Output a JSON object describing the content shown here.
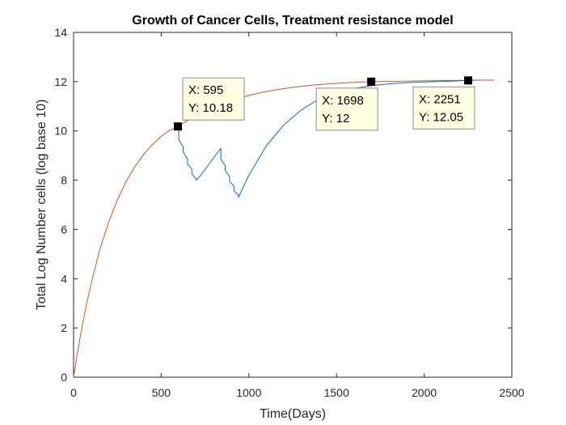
{
  "chart_data": {
    "type": "line",
    "title": "Growth of Cancer Cells, Treatment resistance model",
    "xlabel": "Time(Days)",
    "ylabel": "Total Log Number cells (log base 10)",
    "xlim": [
      0,
      2500
    ],
    "ylim": [
      0,
      14
    ],
    "xticks": [
      "0",
      "500",
      "1000",
      "1500",
      "2000",
      "2500"
    ],
    "yticks": [
      "0",
      "2",
      "4",
      "6",
      "8",
      "10",
      "12",
      "14"
    ],
    "grid": false,
    "colors": {
      "untreated": "#D95319",
      "treated": "#0072BD",
      "marker": "#000000",
      "tip_bg": "#FFFFE1",
      "tip_border": "#8C8C8C"
    },
    "series": [
      {
        "curve": "untreated",
        "x": [
          0,
          25,
          50,
          75,
          100,
          150,
          200,
          250,
          300,
          350,
          400,
          450,
          500,
          550,
          595,
          650,
          700,
          800,
          900,
          1000,
          1100,
          1200,
          1300,
          1400,
          1500,
          1600,
          1698,
          1800,
          1900,
          2000,
          2100,
          2200,
          2251,
          2300,
          2400
        ],
        "y": [
          0,
          1.1,
          2.1,
          3.0,
          3.8,
          5.2,
          6.3,
          7.2,
          7.95,
          8.55,
          9.05,
          9.45,
          9.78,
          10.03,
          10.18,
          10.42,
          10.62,
          10.96,
          11.22,
          11.44,
          11.6,
          11.72,
          11.81,
          11.88,
          11.93,
          11.97,
          12.0,
          12.01,
          12.02,
          12.03,
          12.04,
          12.05,
          12.05,
          12.06,
          12.06
        ]
      },
      {
        "curve": "treated",
        "x": [
          595,
          600,
          600,
          625,
          625,
          650,
          650,
          675,
          675,
          700,
          700,
          725,
          725,
          840,
          840,
          865,
          865,
          890,
          890,
          915,
          915,
          940,
          940,
          1000,
          1100,
          1200,
          1300,
          1400,
          1500,
          1600,
          1700,
          1800,
          1900,
          2000,
          2100,
          2200,
          2251,
          2300
        ],
        "y": [
          10.18,
          10.18,
          9.65,
          9.35,
          9.15,
          8.85,
          8.65,
          8.45,
          8.25,
          8.05,
          8.0,
          8.2,
          8.2,
          9.3,
          8.85,
          8.6,
          8.4,
          8.15,
          7.95,
          7.75,
          7.55,
          7.4,
          7.3,
          8.2,
          9.4,
          10.25,
          10.85,
          11.3,
          11.55,
          11.72,
          11.84,
          11.91,
          11.96,
          11.99,
          12.01,
          12.03,
          12.05,
          12.06
        ]
      }
    ],
    "datatips": [
      {
        "x": 595,
        "y": 10.18,
        "label_x": "X: 595",
        "label_y": "Y: 10.18"
      },
      {
        "x": 2251,
        "y": 12.05,
        "label_x": "X: 2251",
        "label_y": "Y: 12.05"
      },
      {
        "x": 1698,
        "y": 12,
        "label_x": "X: 1698",
        "label_y": "Y: 12"
      }
    ]
  }
}
